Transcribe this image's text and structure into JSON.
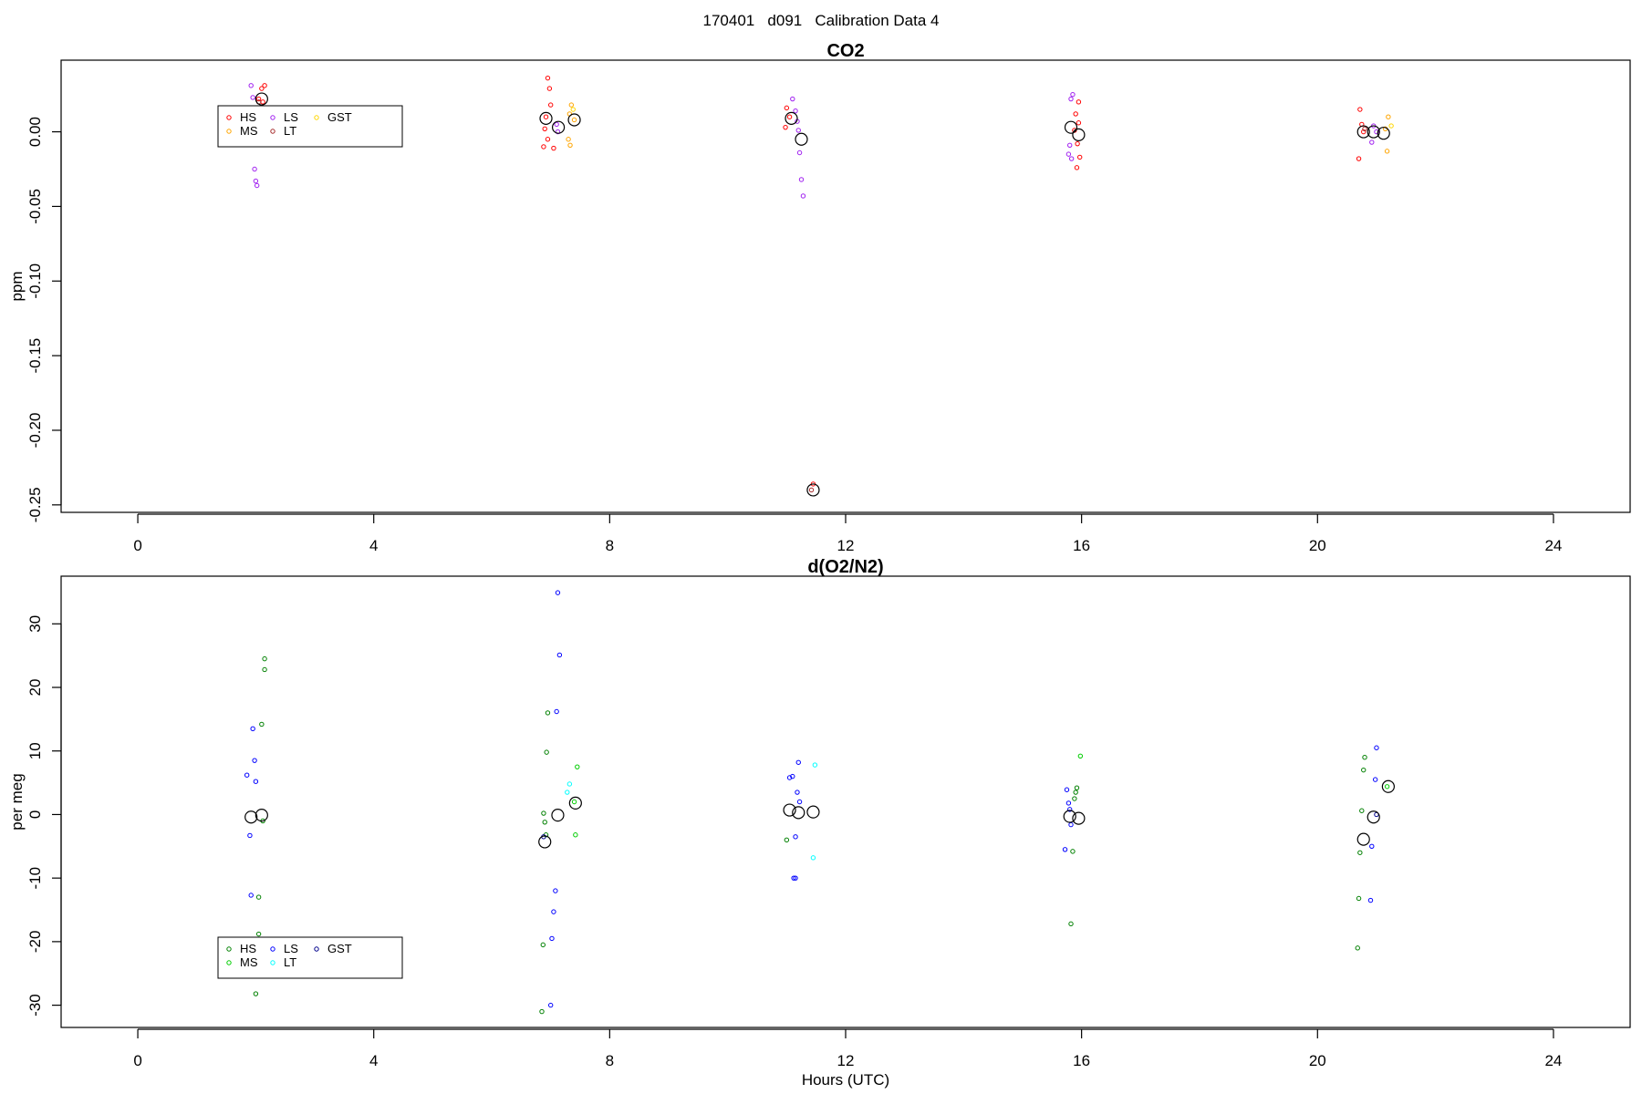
{
  "page_title": "170401   d091   Calibration Data 4",
  "chart_data": [
    {
      "type": "scatter",
      "title": "CO2",
      "xlabel": "",
      "ylabel": "ppm",
      "xlim": [
        -1.3,
        25.3
      ],
      "ylim": [
        -0.255,
        0.048
      ],
      "x_ticks": [
        0,
        4,
        8,
        12,
        16,
        20,
        24
      ],
      "y_ticks": [
        0.0,
        -0.05,
        -0.1,
        -0.15,
        -0.2,
        -0.25
      ],
      "y_tick_labels": [
        "0.00",
        "-0.05",
        "-0.10",
        "-0.15",
        "-0.20",
        "-0.25"
      ],
      "legend": {
        "placement": "top-left",
        "entries": [
          {
            "label": "HS",
            "color": "#ff0000"
          },
          {
            "label": "MS",
            "color": "#ffa500"
          },
          {
            "label": "LS",
            "color": "#a020f0"
          },
          {
            "label": "LT",
            "color": "#a52a2a"
          },
          {
            "label": "GST",
            "color": "#ffd700"
          }
        ]
      },
      "series": [
        {
          "color": "#ff0000",
          "points": [
            [
              2.15,
              0.031
            ],
            [
              2.1,
              0.029
            ],
            [
              2.05,
              0.022
            ],
            [
              2.12,
              0.02
            ],
            [
              6.95,
              0.036
            ],
            [
              6.98,
              0.029
            ],
            [
              7.0,
              0.018
            ],
            [
              6.92,
              0.01
            ],
            [
              6.9,
              0.002
            ],
            [
              6.95,
              -0.005
            ],
            [
              6.88,
              -0.01
            ],
            [
              7.05,
              -0.011
            ],
            [
              11.0,
              0.016
            ],
            [
              11.05,
              0.01
            ],
            [
              10.98,
              0.003
            ],
            [
              11.45,
              -0.236
            ],
            [
              15.95,
              0.02
            ],
            [
              15.9,
              0.012
            ],
            [
              15.95,
              0.006
            ],
            [
              15.88,
              0.001
            ],
            [
              15.93,
              -0.008
            ],
            [
              15.97,
              -0.017
            ],
            [
              15.92,
              -0.024
            ],
            [
              20.72,
              0.015
            ],
            [
              20.75,
              0.005
            ],
            [
              20.78,
              0.0
            ],
            [
              20.7,
              -0.018
            ]
          ]
        },
        {
          "color": "#ffa500",
          "points": [
            [
              7.35,
              0.018
            ],
            [
              7.32,
              0.012
            ],
            [
              7.4,
              0.008
            ],
            [
              7.3,
              -0.005
            ],
            [
              7.33,
              -0.009
            ],
            [
              21.2,
              0.01
            ],
            [
              21.15,
              0.002
            ],
            [
              21.18,
              -0.013
            ]
          ]
        },
        {
          "color": "#a020f0",
          "points": [
            [
              1.92,
              0.031
            ],
            [
              1.95,
              0.023
            ],
            [
              1.98,
              -0.025
            ],
            [
              2.0,
              -0.033
            ],
            [
              2.02,
              -0.036
            ],
            [
              7.1,
              0.005
            ],
            [
              7.12,
              0.0
            ],
            [
              11.1,
              0.022
            ],
            [
              11.15,
              0.014
            ],
            [
              11.18,
              0.007
            ],
            [
              11.2,
              0.001
            ],
            [
              11.22,
              -0.014
            ],
            [
              11.25,
              -0.032
            ],
            [
              11.28,
              -0.043
            ],
            [
              15.85,
              0.025
            ],
            [
              15.82,
              0.022
            ],
            [
              15.8,
              -0.009
            ],
            [
              15.78,
              -0.015
            ],
            [
              15.83,
              -0.018
            ],
            [
              20.95,
              0.004
            ],
            [
              21.0,
              0.0
            ],
            [
              20.92,
              -0.007
            ]
          ]
        },
        {
          "color": "#a52a2a",
          "points": [
            [
              2.05,
              0.02
            ],
            [
              11.42,
              -0.24
            ],
            [
              20.8,
              0.002
            ]
          ]
        },
        {
          "color": "#ffd700",
          "points": [
            [
              7.38,
              0.015
            ],
            [
              21.25,
              0.004
            ]
          ]
        }
      ],
      "means": [
        [
          2.1,
          0.022
        ],
        [
          6.92,
          0.009
        ],
        [
          7.13,
          0.003
        ],
        [
          7.4,
          0.008
        ],
        [
          11.08,
          0.009
        ],
        [
          11.25,
          -0.005
        ],
        [
          11.45,
          -0.24
        ],
        [
          15.82,
          0.003
        ],
        [
          15.95,
          -0.002
        ],
        [
          20.78,
          0.0
        ],
        [
          20.95,
          0.0
        ],
        [
          21.12,
          -0.001
        ]
      ]
    },
    {
      "type": "scatter",
      "title": "d(O2/N2)",
      "xlabel": "Hours (UTC)",
      "ylabel": "per meg",
      "xlim": [
        -1.3,
        25.3
      ],
      "ylim": [
        -33.5,
        37.5
      ],
      "x_ticks": [
        0,
        4,
        8,
        12,
        16,
        20,
        24
      ],
      "y_ticks": [
        30,
        20,
        10,
        0,
        -10,
        -20,
        -30
      ],
      "y_tick_labels": [
        "30",
        "20",
        "10",
        "0",
        "-10",
        "-20",
        "-30"
      ],
      "legend": {
        "placement": "bottom-left",
        "entries": [
          {
            "label": "HS",
            "color": "#008000"
          },
          {
            "label": "MS",
            "color": "#00cd00"
          },
          {
            "label": "LS",
            "color": "#0000ff"
          },
          {
            "label": "LT",
            "color": "#00ffff"
          },
          {
            "label": "GST",
            "color": "#00008b"
          }
        ]
      },
      "series": [
        {
          "color": "#008000",
          "points": [
            [
              2.15,
              24.5
            ],
            [
              2.15,
              22.8
            ],
            [
              2.1,
              14.2
            ],
            [
              2.12,
              -1.0
            ],
            [
              2.05,
              -13.0
            ],
            [
              2.05,
              -18.8
            ],
            [
              2.0,
              -28.2
            ],
            [
              6.95,
              16.0
            ],
            [
              6.93,
              9.8
            ],
            [
              6.88,
              0.2
            ],
            [
              6.9,
              -1.2
            ],
            [
              6.92,
              -3.2
            ],
            [
              6.87,
              -20.5
            ],
            [
              6.85,
              -31.0
            ],
            [
              11.0,
              -4.0
            ],
            [
              15.92,
              4.2
            ],
            [
              15.9,
              3.5
            ],
            [
              15.88,
              2.5
            ],
            [
              15.85,
              -5.8
            ],
            [
              15.82,
              -17.2
            ],
            [
              20.8,
              9.0
            ],
            [
              20.78,
              7.0
            ],
            [
              20.75,
              0.6
            ],
            [
              20.72,
              -6.0
            ],
            [
              20.7,
              -13.2
            ],
            [
              20.68,
              -21.0
            ]
          ]
        },
        {
          "color": "#00cd00",
          "points": [
            [
              7.45,
              7.5
            ],
            [
              7.4,
              2.0
            ],
            [
              7.42,
              -3.2
            ],
            [
              15.98,
              9.2
            ],
            [
              21.18,
              4.4
            ]
          ]
        },
        {
          "color": "#0000ff",
          "points": [
            [
              1.95,
              13.5
            ],
            [
              1.98,
              8.5
            ],
            [
              1.85,
              6.2
            ],
            [
              2.0,
              5.2
            ],
            [
              1.9,
              -3.3
            ],
            [
              1.92,
              -12.7
            ],
            [
              7.12,
              34.9
            ],
            [
              7.15,
              25.1
            ],
            [
              7.1,
              16.2
            ],
            [
              7.08,
              -12.0
            ],
            [
              7.05,
              -15.3
            ],
            [
              7.02,
              -19.5
            ],
            [
              7.0,
              -30.0
            ],
            [
              11.05,
              5.8
            ],
            [
              11.1,
              6.0
            ],
            [
              11.2,
              8.2
            ],
            [
              11.18,
              3.5
            ],
            [
              11.22,
              2.0
            ],
            [
              11.15,
              -3.5
            ],
            [
              11.12,
              -10.0
            ],
            [
              11.15,
              -10.0
            ],
            [
              15.75,
              3.9
            ],
            [
              15.78,
              1.8
            ],
            [
              15.8,
              0.8
            ],
            [
              15.82,
              -1.6
            ],
            [
              15.72,
              -5.5
            ],
            [
              21.0,
              10.5
            ],
            [
              20.98,
              5.5
            ],
            [
              20.92,
              -5.0
            ],
            [
              20.9,
              -13.5
            ]
          ]
        },
        {
          "color": "#00ffff",
          "points": [
            [
              7.32,
              4.8
            ],
            [
              7.28,
              3.5
            ],
            [
              11.48,
              7.8
            ],
            [
              11.45,
              -6.8
            ]
          ]
        },
        {
          "color": "#00008b",
          "points": [
            [
              6.88,
              -3.5
            ],
            [
              21.0,
              0.0
            ]
          ]
        }
      ],
      "means": [
        [
          1.92,
          -0.4
        ],
        [
          2.1,
          -0.1
        ],
        [
          6.9,
          -4.3
        ],
        [
          7.12,
          -0.1
        ],
        [
          7.42,
          1.8
        ],
        [
          11.05,
          0.7
        ],
        [
          11.2,
          0.3
        ],
        [
          11.45,
          0.4
        ],
        [
          15.8,
          -0.3
        ],
        [
          15.95,
          -0.6
        ],
        [
          20.78,
          -3.9
        ],
        [
          20.95,
          -0.4
        ],
        [
          21.2,
          4.4
        ]
      ]
    }
  ]
}
